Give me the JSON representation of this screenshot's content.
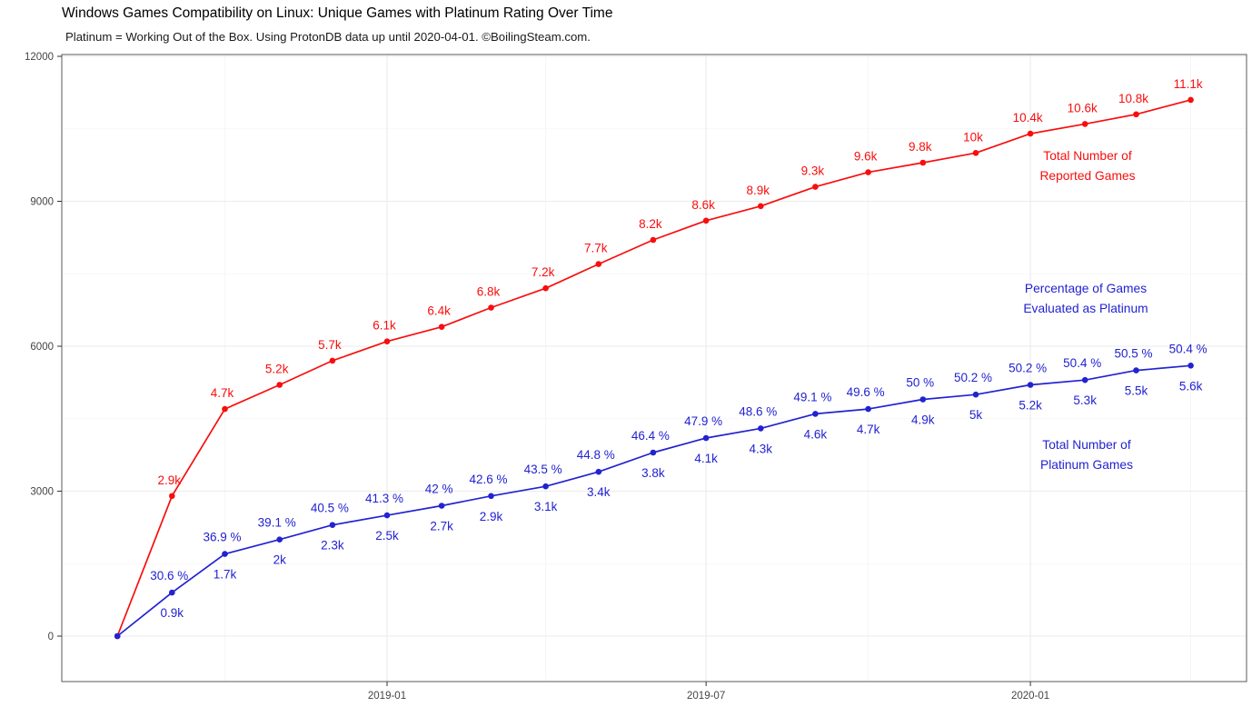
{
  "title": "Windows Games Compatibility on Linux: Unique Games with Platinum Rating Over Time",
  "subtitle": "Platinum = Working Out of the Box. Using ProtonDB data up until 2020-04-01. ©BoilingSteam.com.",
  "colors": {
    "reported_red": "#f90d0d",
    "platinum_blue": "#2222d2",
    "grid_major": "#ebebeb",
    "grid_minor": "#f4f4f4",
    "panel_border": "#595959",
    "tick_mark": "#333333",
    "tick_label": "#444444"
  },
  "chart_data": {
    "type": "line",
    "x": [
      "2018-08",
      "2018-09",
      "2018-10",
      "2018-11",
      "2018-12",
      "2019-01",
      "2019-02",
      "2019-03",
      "2019-04",
      "2019-05",
      "2019-06",
      "2019-07",
      "2019-08",
      "2019-09",
      "2019-10",
      "2019-11",
      "2019-12",
      "2020-01",
      "2020-02",
      "2020-03",
      "2020-04"
    ],
    "series": [
      {
        "name": "Total Number of Reported Games",
        "color": "#f90d0d",
        "values": [
          0,
          2900,
          4700,
          5200,
          5700,
          6100,
          6400,
          6800,
          7200,
          7700,
          8200,
          8600,
          8900,
          9300,
          9600,
          9800,
          10000,
          10400,
          10600,
          10800,
          11100
        ],
        "point_labels": [
          "",
          "2.9k",
          "4.7k",
          "5.2k",
          "5.7k",
          "6.1k",
          "6.4k",
          "6.8k",
          "7.2k",
          "7.7k",
          "8.2k",
          "8.6k",
          "8.9k",
          "9.3k",
          "9.6k",
          "9.8k",
          "10k",
          "10.4k",
          "10.6k",
          "10.8k",
          "11.1k"
        ],
        "label_side": "above"
      },
      {
        "name": "Total Number of Platinum Games",
        "color": "#2222d2",
        "values": [
          0,
          900,
          1700,
          2000,
          2300,
          2500,
          2700,
          2900,
          3100,
          3400,
          3800,
          4100,
          4300,
          4600,
          4700,
          4900,
          5000,
          5200,
          5300,
          5500,
          5600
        ],
        "point_labels": [
          "",
          "0.9k",
          "1.7k",
          "2k",
          "2.3k",
          "2.5k",
          "2.7k",
          "2.9k",
          "3.1k",
          "3.4k",
          "3.8k",
          "4.1k",
          "4.3k",
          "4.6k",
          "4.7k",
          "4.9k",
          "5k",
          "5.2k",
          "5.3k",
          "5.5k",
          "5.6k"
        ],
        "label_side": "below",
        "pct_labels": [
          "",
          "30.6 %",
          "36.9 %",
          "39.1 %",
          "40.5 %",
          "41.3 %",
          "42 %",
          "42.6 %",
          "43.5 %",
          "44.8 %",
          "46.4 %",
          "47.9 %",
          "48.6 %",
          "49.1 %",
          "49.6 %",
          "50 %",
          "50.2 %",
          "50.2 %",
          "50.4 %",
          "50.5 %",
          "50.4 %"
        ]
      }
    ],
    "ylim": [
      0,
      12000
    ],
    "yticks": [
      0,
      3000,
      6000,
      9000,
      12000
    ],
    "ytick_labels": [
      "0",
      "3000",
      "6000",
      "9000",
      "12000"
    ],
    "yticks_minor": [
      1500,
      4500,
      7500,
      10500
    ],
    "xticks": [
      "2019-01",
      "2019-07",
      "2020-01"
    ],
    "xtick_labels": [
      "2019-01",
      "2019-07",
      "2020-01"
    ],
    "xticks_minor": [
      "2018-10",
      "2019-04",
      "2019-10",
      "2020-04"
    ],
    "grid": true,
    "legend_position": "none",
    "annotations": [
      {
        "lines": [
          "Total Number of",
          "Reported Games"
        ],
        "color": "#f90d0d",
        "x": 1197,
        "y": 176
      },
      {
        "lines": [
          "Percentage of Games",
          "Evaluated as Platinum"
        ],
        "color": "#2222d2",
        "x": 1195,
        "y": 322
      },
      {
        "lines": [
          "Total Number of",
          "Platinum Games"
        ],
        "color": "#2222d2",
        "x": 1196,
        "y": 494
      }
    ]
  }
}
